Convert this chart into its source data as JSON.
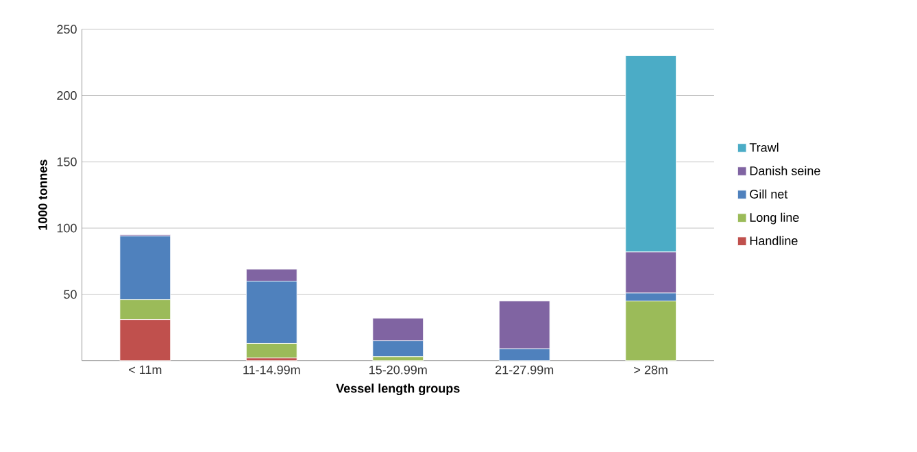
{
  "chart_data": {
    "type": "bar",
    "stacked": true,
    "xlabel": "Vessel length groups",
    "ylabel": "1000 tonnes",
    "categories": [
      "< 11m",
      "11-14.99m",
      "15-20.99m",
      "21-27.99m",
      "> 28m"
    ],
    "series": [
      {
        "name": "Handline",
        "color": "#c0504d",
        "values": [
          31,
          2,
          0,
          0,
          0
        ]
      },
      {
        "name": "Long line",
        "color": "#9bbb59",
        "values": [
          15,
          11,
          3,
          0,
          45
        ]
      },
      {
        "name": "Gill net",
        "color": "#4f81bd",
        "values": [
          48,
          47,
          12,
          9,
          6
        ]
      },
      {
        "name": "Danish seine",
        "color": "#8064a2",
        "values": [
          1,
          9,
          17,
          36,
          31
        ]
      },
      {
        "name": "Trawl",
        "color": "#4bacc6",
        "values": [
          0,
          0,
          0,
          0,
          148
        ]
      }
    ],
    "ylim": [
      0,
      250
    ],
    "yticks": [
      50,
      100,
      150,
      200,
      250
    ],
    "grid": "y",
    "legend": "right"
  }
}
